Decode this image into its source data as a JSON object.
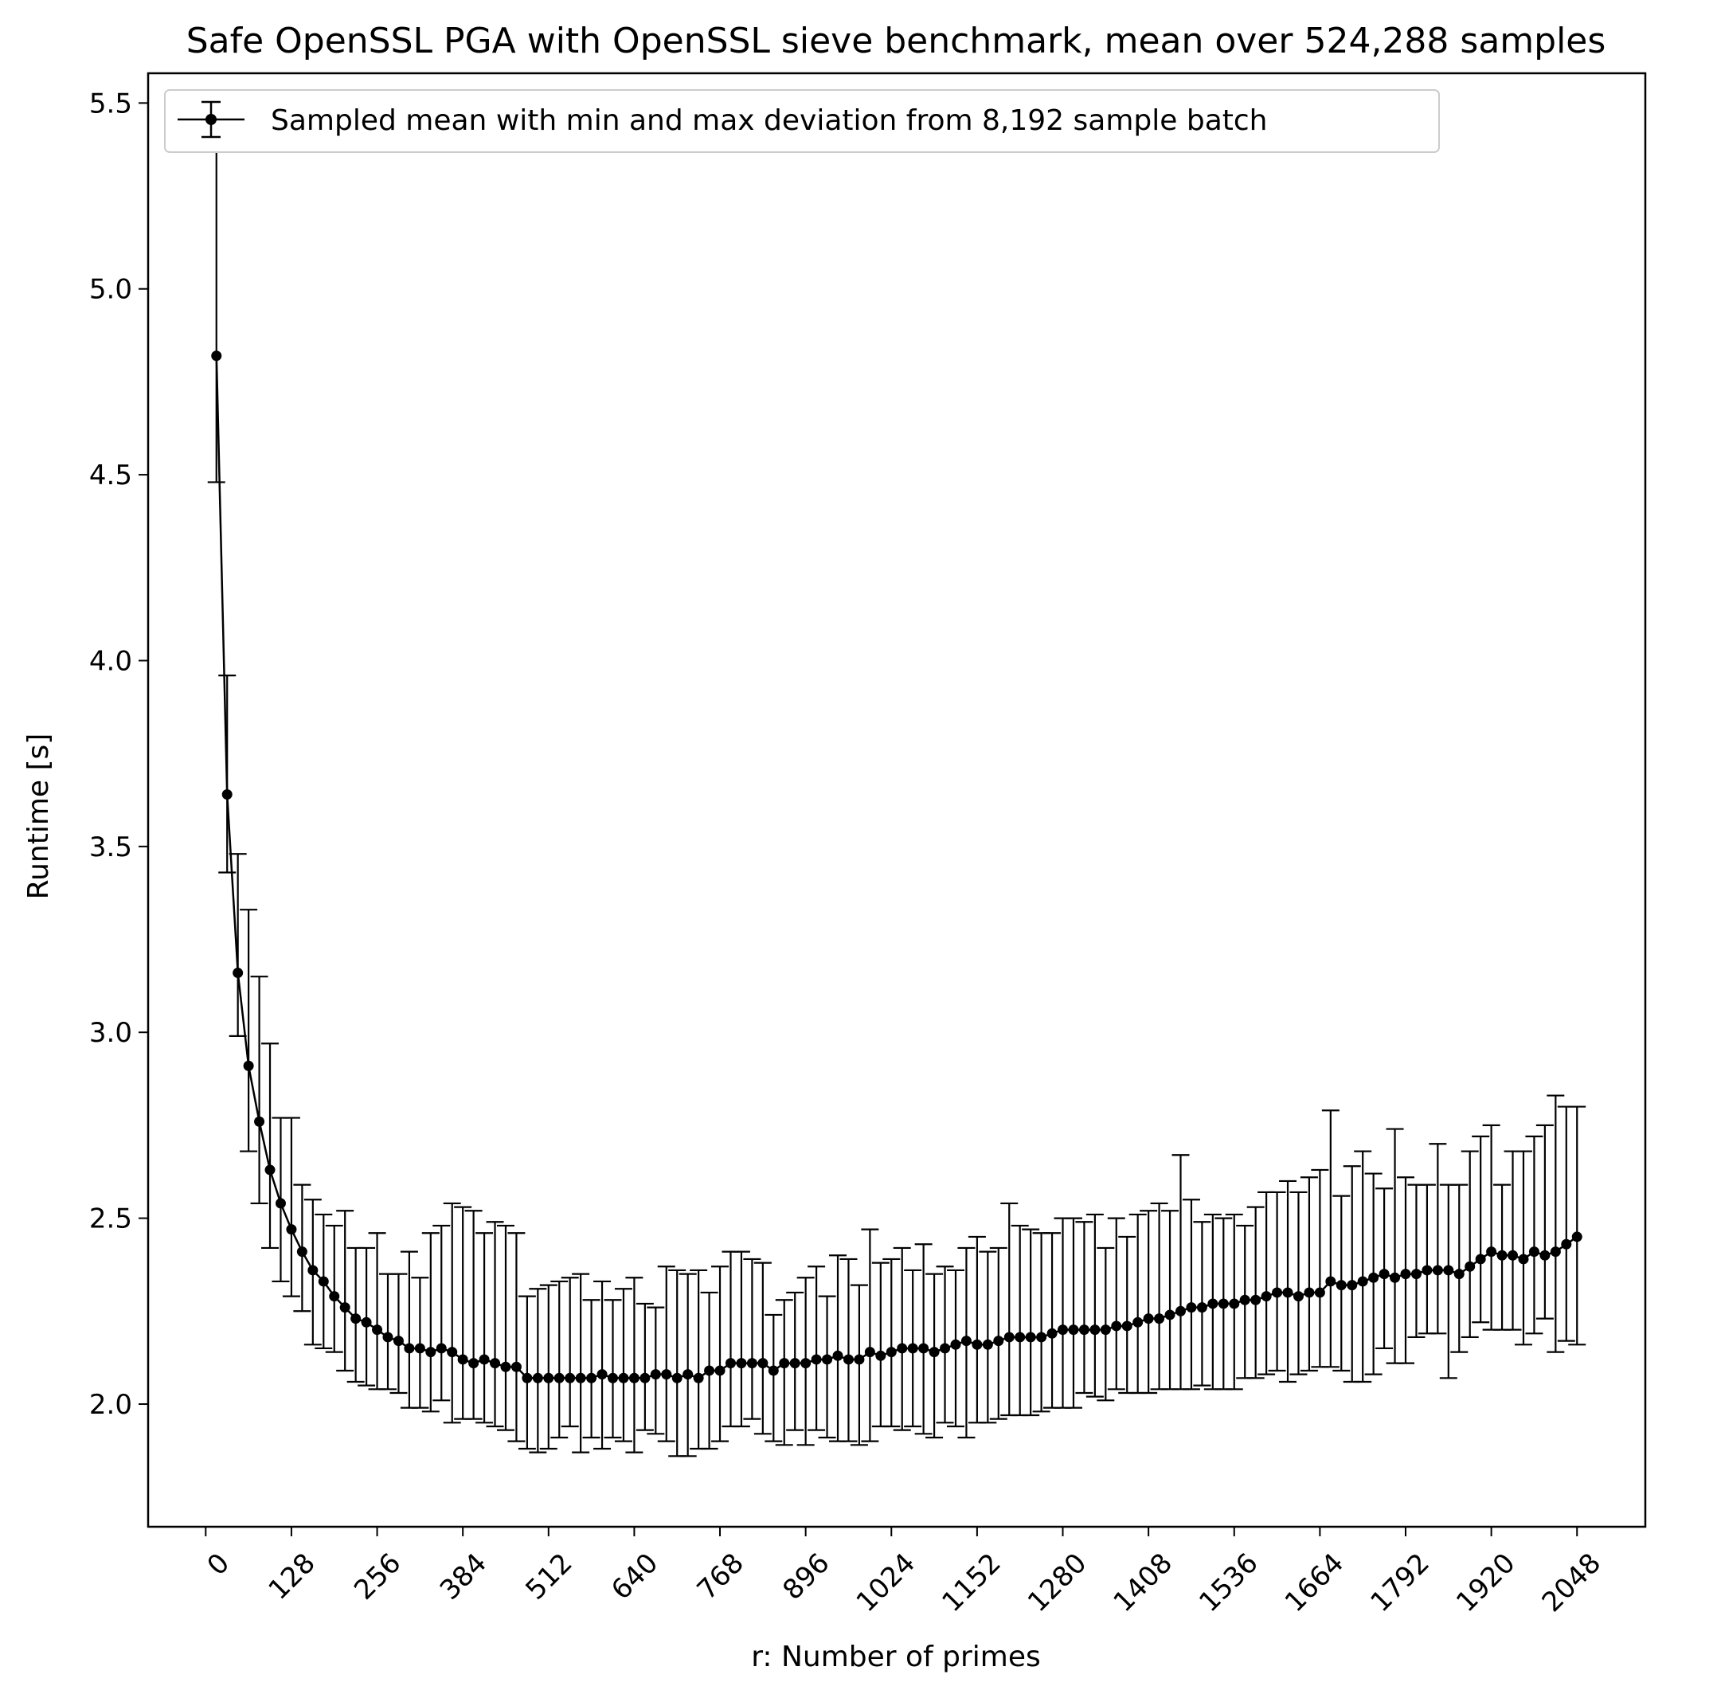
{
  "chart_data": {
    "type": "line",
    "title": "Safe OpenSSL PGA with OpenSSL sieve benchmark, mean over 524,288 samples",
    "xlabel": "r: Number of primes",
    "ylabel": "Runtime [s]",
    "xlim": [
      -86,
      2150
    ],
    "ylim": [
      1.67,
      5.58
    ],
    "xticks": [
      0,
      128,
      256,
      384,
      512,
      640,
      768,
      896,
      1024,
      1152,
      1280,
      1408,
      1536,
      1664,
      1792,
      1920,
      2048
    ],
    "yticks": [
      "2.0",
      "2.5",
      "3.0",
      "3.5",
      "4.0",
      "4.5",
      "5.0",
      "5.5"
    ],
    "legend": {
      "label": "Sampled mean with min and max deviation from 8,192 sample batch",
      "location": "upper-left"
    },
    "series": [
      {
        "name": "Sampled mean with min and max deviation from 8,192 sample batch",
        "color": "#000000",
        "marker": "circle",
        "x": [
          16,
          32,
          48,
          64,
          80,
          96,
          112,
          128,
          144,
          160,
          176,
          192,
          208,
          224,
          240,
          256,
          272,
          288,
          304,
          320,
          336,
          352,
          368,
          384,
          400,
          416,
          432,
          448,
          464,
          480,
          496,
          512,
          528,
          544,
          560,
          576,
          592,
          608,
          624,
          640,
          656,
          672,
          688,
          704,
          720,
          736,
          752,
          768,
          784,
          800,
          816,
          832,
          848,
          864,
          880,
          896,
          912,
          928,
          944,
          960,
          976,
          992,
          1008,
          1024,
          1040,
          1056,
          1072,
          1088,
          1104,
          1120,
          1136,
          1152,
          1168,
          1184,
          1200,
          1216,
          1232,
          1248,
          1264,
          1280,
          1296,
          1312,
          1328,
          1344,
          1360,
          1376,
          1392,
          1408,
          1424,
          1440,
          1456,
          1472,
          1488,
          1504,
          1520,
          1536,
          1552,
          1568,
          1584,
          1600,
          1616,
          1632,
          1648,
          1664,
          1680,
          1696,
          1712,
          1728,
          1744,
          1760,
          1776,
          1792,
          1808,
          1824,
          1840,
          1856,
          1872,
          1888,
          1904,
          1920,
          1936,
          1952,
          1968,
          1984,
          2000,
          2016,
          2032,
          2048
        ],
        "mean": [
          4.82,
          3.64,
          3.16,
          2.91,
          2.76,
          2.63,
          2.54,
          2.47,
          2.41,
          2.36,
          2.33,
          2.29,
          2.26,
          2.23,
          2.22,
          2.2,
          2.18,
          2.17,
          2.15,
          2.15,
          2.14,
          2.15,
          2.14,
          2.12,
          2.11,
          2.12,
          2.11,
          2.1,
          2.1,
          2.07,
          2.07,
          2.07,
          2.07,
          2.07,
          2.07,
          2.07,
          2.08,
          2.07,
          2.07,
          2.07,
          2.07,
          2.08,
          2.08,
          2.07,
          2.08,
          2.07,
          2.09,
          2.09,
          2.11,
          2.11,
          2.11,
          2.11,
          2.09,
          2.11,
          2.11,
          2.11,
          2.12,
          2.12,
          2.13,
          2.12,
          2.12,
          2.14,
          2.13,
          2.14,
          2.15,
          2.15,
          2.15,
          2.14,
          2.15,
          2.16,
          2.17,
          2.16,
          2.16,
          2.17,
          2.18,
          2.18,
          2.18,
          2.18,
          2.19,
          2.2,
          2.2,
          2.2,
          2.2,
          2.2,
          2.21,
          2.21,
          2.22,
          2.23,
          2.23,
          2.24,
          2.25,
          2.26,
          2.26,
          2.27,
          2.27,
          2.27,
          2.28,
          2.28,
          2.29,
          2.3,
          2.3,
          2.29,
          2.3,
          2.3,
          2.33,
          2.32,
          2.32,
          2.33,
          2.34,
          2.35,
          2.34,
          2.35,
          2.35,
          2.36,
          2.36,
          2.36,
          2.35,
          2.37,
          2.39,
          2.41,
          2.4,
          2.4,
          2.39,
          2.41,
          2.4,
          2.41,
          2.43,
          2.45
        ],
        "min": [
          4.48,
          3.43,
          2.99,
          2.68,
          2.54,
          2.42,
          2.33,
          2.29,
          2.25,
          2.16,
          2.15,
          2.14,
          2.09,
          2.06,
          2.05,
          2.04,
          2.04,
          2.03,
          1.99,
          1.99,
          1.98,
          2.01,
          1.95,
          1.96,
          1.96,
          1.95,
          1.94,
          1.93,
          1.9,
          1.88,
          1.87,
          1.88,
          1.91,
          1.94,
          1.87,
          1.91,
          1.88,
          1.91,
          1.9,
          1.87,
          1.93,
          1.92,
          1.9,
          1.86,
          1.86,
          1.88,
          1.88,
          1.9,
          1.94,
          1.94,
          1.96,
          1.92,
          1.9,
          1.89,
          1.93,
          1.89,
          1.93,
          1.91,
          1.9,
          1.9,
          1.89,
          1.9,
          1.94,
          1.94,
          1.93,
          1.94,
          1.92,
          1.91,
          1.95,
          1.94,
          1.91,
          1.95,
          1.95,
          1.96,
          1.97,
          1.97,
          1.97,
          1.98,
          1.99,
          1.99,
          1.99,
          2.03,
          2.02,
          2.01,
          2.04,
          2.03,
          2.03,
          2.03,
          2.04,
          2.04,
          2.04,
          2.04,
          2.05,
          2.04,
          2.04,
          2.04,
          2.07,
          2.07,
          2.08,
          2.09,
          2.06,
          2.08,
          2.09,
          2.1,
          2.1,
          2.09,
          2.06,
          2.06,
          2.08,
          2.15,
          2.11,
          2.11,
          2.18,
          2.19,
          2.19,
          2.07,
          2.14,
          2.18,
          2.22,
          2.2,
          2.2,
          2.2,
          2.16,
          2.19,
          2.23,
          2.14,
          2.17,
          2.16
        ],
        "max": [
          5.4,
          3.96,
          3.48,
          3.33,
          3.15,
          2.97,
          2.77,
          2.77,
          2.59,
          2.55,
          2.51,
          2.48,
          2.52,
          2.42,
          2.42,
          2.46,
          2.35,
          2.35,
          2.41,
          2.34,
          2.46,
          2.48,
          2.54,
          2.53,
          2.52,
          2.46,
          2.49,
          2.48,
          2.46,
          2.29,
          2.31,
          2.32,
          2.33,
          2.34,
          2.35,
          2.28,
          2.33,
          2.28,
          2.31,
          2.34,
          2.27,
          2.26,
          2.37,
          2.36,
          2.35,
          2.36,
          2.3,
          2.37,
          2.41,
          2.41,
          2.39,
          2.38,
          2.24,
          2.28,
          2.3,
          2.34,
          2.37,
          2.29,
          2.4,
          2.39,
          2.32,
          2.47,
          2.38,
          2.39,
          2.42,
          2.36,
          2.43,
          2.35,
          2.37,
          2.36,
          2.42,
          2.45,
          2.41,
          2.42,
          2.54,
          2.48,
          2.47,
          2.46,
          2.46,
          2.5,
          2.5,
          2.49,
          2.51,
          2.42,
          2.5,
          2.45,
          2.51,
          2.52,
          2.54,
          2.52,
          2.67,
          2.55,
          2.49,
          2.51,
          2.5,
          2.51,
          2.48,
          2.53,
          2.57,
          2.57,
          2.6,
          2.57,
          2.61,
          2.63,
          2.79,
          2.56,
          2.64,
          2.68,
          2.62,
          2.58,
          2.74,
          2.61,
          2.59,
          2.59,
          2.7,
          2.59,
          2.59,
          2.68,
          2.72,
          2.75,
          2.59,
          2.68,
          2.68,
          2.72,
          2.75,
          2.83,
          2.8,
          2.8
        ]
      }
    ]
  }
}
